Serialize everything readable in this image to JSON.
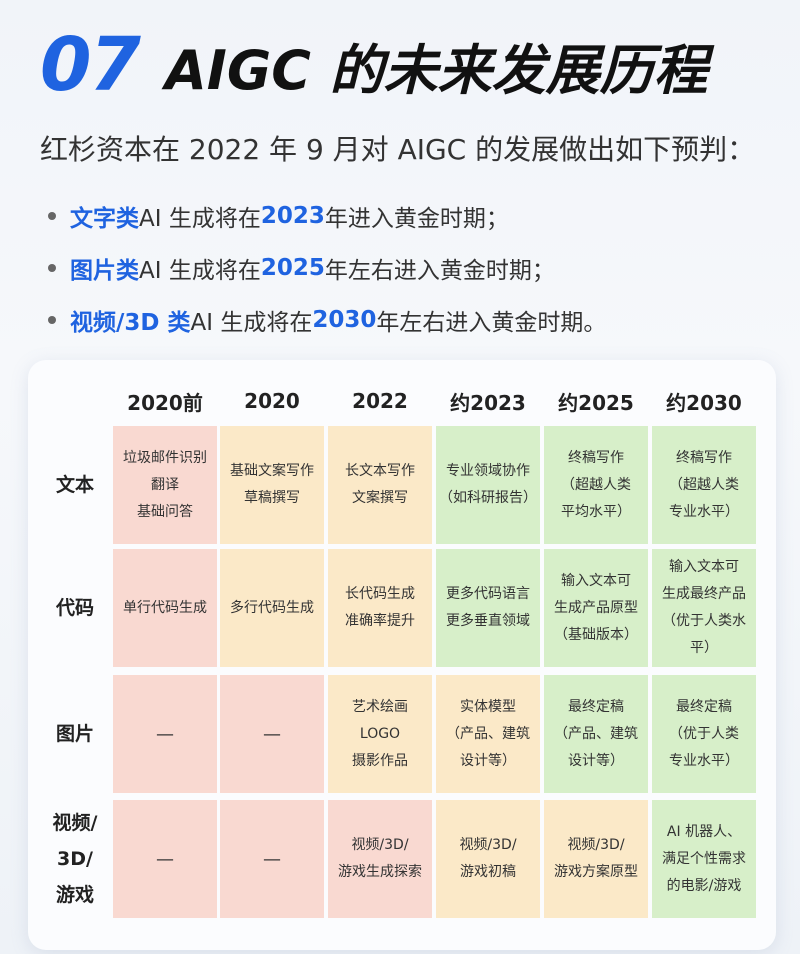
{
  "header": {
    "number": "07",
    "title": "AIGC 的未来发展历程"
  },
  "intro": "红杉资本在 2022 年 9 月对 AIGC 的发展做出如下预判：",
  "bullets": [
    {
      "highlight": "文字类",
      "mid": " AI 生成将在 ",
      "year": "2023",
      "tail": " 年进入黄金时期；"
    },
    {
      "highlight": "图片类",
      "mid": " AI 生成将在 ",
      "year": "2025",
      "tail": " 年左右进入黄金时期；"
    },
    {
      "highlight": "视频/3D 类",
      "mid": " AI 生成将在 ",
      "year": "2030",
      "tail": " 年左右进入黄金时期。"
    }
  ],
  "table": {
    "columns": [
      "2020前",
      "2020",
      "2022",
      "约2023",
      "约2025",
      "约2030"
    ],
    "rows": [
      {
        "label": "文本",
        "cells": [
          [
            "垃圾邮件识别",
            "翻译",
            "基础问答"
          ],
          [
            "基础文案写作",
            "草稿撰写"
          ],
          [
            "长文本写作",
            "文案撰写"
          ],
          [
            "专业领域协作",
            "（如科研报告）"
          ],
          [
            "终稿写作",
            "（超越人类",
            "平均水平）"
          ],
          [
            "终稿写作",
            "（超越人类",
            "专业水平）"
          ]
        ]
      },
      {
        "label": "代码",
        "cells": [
          [
            "单行代码生成"
          ],
          [
            "多行代码生成"
          ],
          [
            "长代码生成",
            "准确率提升"
          ],
          [
            "更多代码语言",
            "更多垂直领域"
          ],
          [
            "输入文本可",
            "生成产品原型",
            "（基础版本）"
          ],
          [
            "输入文本可",
            "生成最终产品",
            "（优于人类水平）"
          ]
        ]
      },
      {
        "label": "图片",
        "cells": [
          [
            "—"
          ],
          [
            "—"
          ],
          [
            "艺术绘画",
            "LOGO",
            "摄影作品"
          ],
          [
            "实体模型",
            "（产品、建筑",
            "设计等）"
          ],
          [
            "最终定稿",
            "（产品、建筑",
            "设计等）"
          ],
          [
            "最终定稿",
            "（优于人类",
            "专业水平）"
          ]
        ]
      },
      {
        "label": "视频/\n3D/\n游戏",
        "label_lines": [
          "视频/",
          "3D/",
          "游戏"
        ],
        "cells": [
          [
            "—"
          ],
          [
            "—"
          ],
          [
            "视频/3D/",
            "游戏生成探索"
          ],
          [
            "视频/3D/",
            "游戏初稿"
          ],
          [
            "视频/3D/",
            "游戏方案原型"
          ],
          [
            "AI 机器人、",
            "满足个性需求",
            "的电影/游戏"
          ]
        ]
      }
    ],
    "colors": {
      "red": "#f9d9d1",
      "yellow": "#fbe9c8",
      "green": "#d7efc9",
      "accent": "#1f63e0"
    },
    "cell_colors": [
      [
        "red",
        "yellow",
        "yellow",
        "green",
        "green",
        "green"
      ],
      [
        "red",
        "yellow",
        "yellow",
        "green",
        "green",
        "green"
      ],
      [
        "red",
        "red",
        "yellow",
        "yellow",
        "green",
        "green"
      ],
      [
        "red",
        "red",
        "red",
        "yellow",
        "yellow",
        "green"
      ]
    ]
  }
}
